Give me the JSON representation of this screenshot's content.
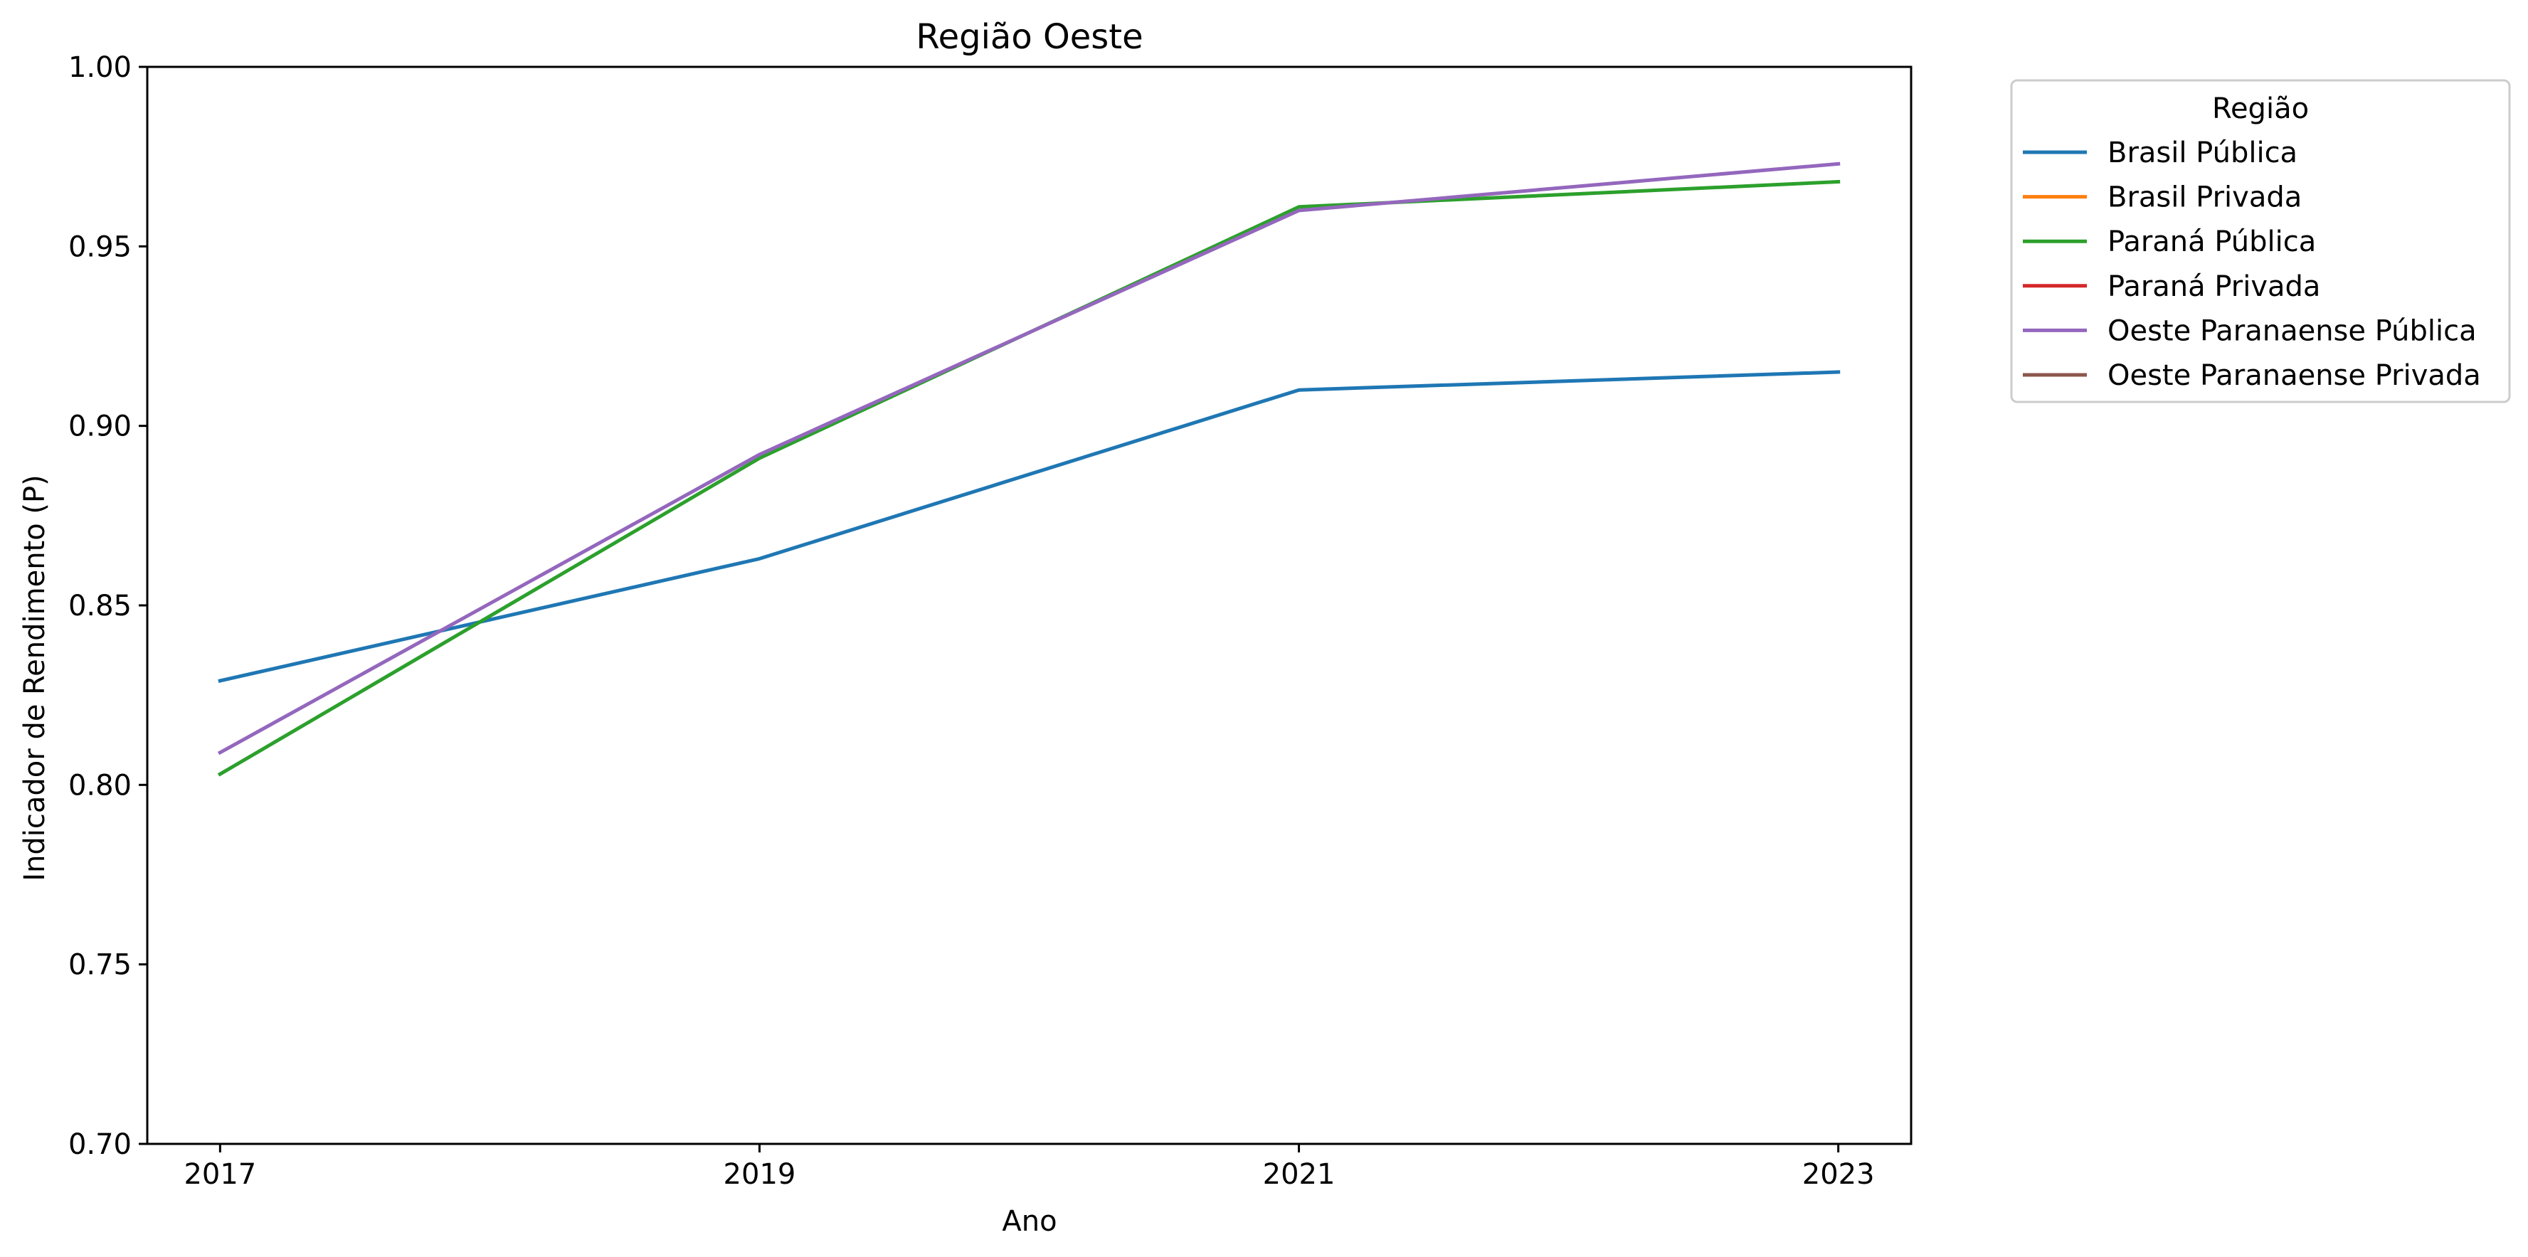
{
  "chart_data": {
    "type": "line",
    "title": "Região Oeste",
    "xlabel": "Ano",
    "ylabel": "Indicador de Rendimento (P)",
    "x": [
      2017,
      2019,
      2021,
      2023
    ],
    "x_tick_labels": [
      "2017",
      "2019",
      "2021",
      "2023"
    ],
    "ylim": [
      0.7,
      1.0
    ],
    "y_ticks": [
      0.7,
      0.75,
      0.8,
      0.85,
      0.9,
      0.95,
      1.0
    ],
    "y_tick_labels": [
      "0.70",
      "0.75",
      "0.80",
      "0.85",
      "0.90",
      "0.95",
      "1.00"
    ],
    "grid": false,
    "legend": {
      "title": "Região",
      "placement": "outside-upper-right"
    },
    "series": [
      {
        "name": "Brasil Pública",
        "color": "#1f77b4",
        "values": [
          0.829,
          0.863,
          0.91,
          0.915
        ]
      },
      {
        "name": "Brasil Privada",
        "color": "#ff7f0e",
        "values": [
          null,
          null,
          null,
          null
        ]
      },
      {
        "name": "Paraná Pública",
        "color": "#2ca02c",
        "values": [
          0.803,
          0.891,
          0.961,
          0.968
        ]
      },
      {
        "name": "Paraná Privada",
        "color": "#d62728",
        "values": [
          null,
          null,
          null,
          null
        ]
      },
      {
        "name": "Oeste Paranaense Pública",
        "color": "#9467bd",
        "values": [
          0.809,
          0.892,
          0.96,
          0.973
        ]
      },
      {
        "name": "Oeste Paranaense Privada",
        "color": "#8c564b",
        "values": [
          null,
          null,
          null,
          null
        ]
      }
    ]
  }
}
